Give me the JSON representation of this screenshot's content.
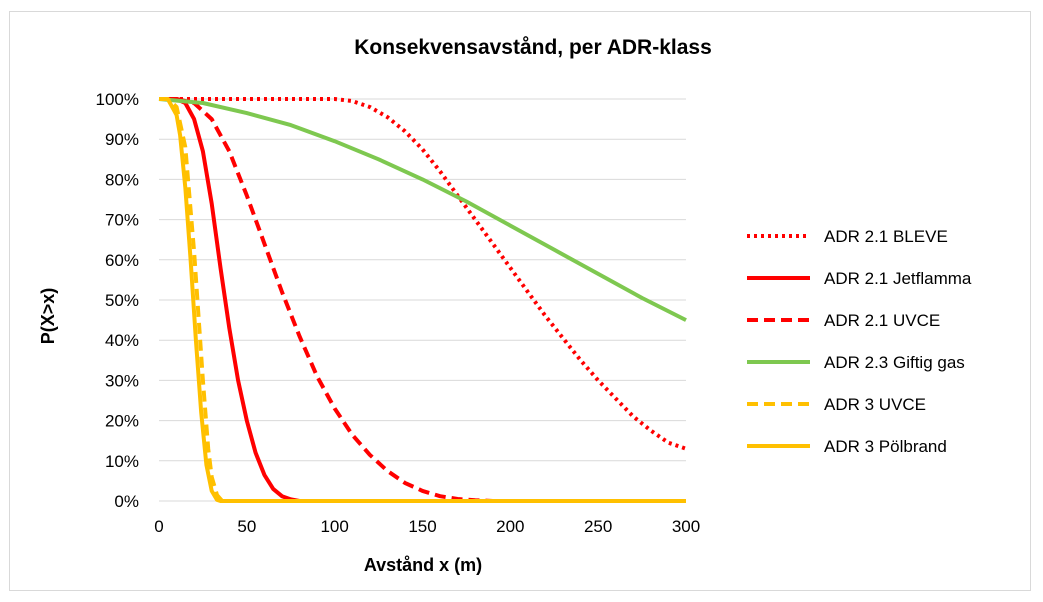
{
  "chart_data": {
    "type": "line",
    "title": "Konsekvensavstånd, per ADR-klass",
    "xlabel": "Avstånd x (m)",
    "ylabel": "P(X>x)",
    "xlim": [
      0,
      300
    ],
    "ylim": [
      0,
      1
    ],
    "x_ticks": [
      "0",
      "50",
      "100",
      "150",
      "200",
      "250",
      "300"
    ],
    "y_ticks": [
      "0%",
      "10%",
      "20%",
      "30%",
      "40%",
      "50%",
      "60%",
      "70%",
      "80%",
      "90%",
      "100%"
    ],
    "grid": "horizontal",
    "legend_position": "right",
    "series": [
      {
        "name": "ADR 2.1 BLEVE",
        "color": "#ff0000",
        "style": "dotted",
        "x": [
          0,
          50,
          100,
          110,
          120,
          130,
          140,
          150,
          160,
          170,
          180,
          190,
          200,
          210,
          220,
          230,
          240,
          250,
          260,
          270,
          280,
          290,
          300
        ],
        "y": [
          1.0,
          1.0,
          1.0,
          0.995,
          0.98,
          0.955,
          0.92,
          0.875,
          0.82,
          0.76,
          0.7,
          0.64,
          0.58,
          0.52,
          0.46,
          0.405,
          0.35,
          0.3,
          0.255,
          0.21,
          0.175,
          0.145,
          0.13
        ]
      },
      {
        "name": "ADR 2.1 Jetflamma",
        "color": "#ff0000",
        "style": "solid",
        "x": [
          0,
          10,
          15,
          20,
          25,
          30,
          35,
          40,
          45,
          50,
          55,
          60,
          65,
          70,
          75,
          80,
          90,
          300
        ],
        "y": [
          1.0,
          1.0,
          0.99,
          0.95,
          0.87,
          0.74,
          0.58,
          0.43,
          0.3,
          0.2,
          0.12,
          0.065,
          0.03,
          0.012,
          0.004,
          0.0,
          0.0,
          0.0
        ]
      },
      {
        "name": "ADR 2.1 UVCE",
        "color": "#ff0000",
        "style": "dashed",
        "x": [
          0,
          10,
          20,
          30,
          40,
          50,
          60,
          70,
          80,
          90,
          100,
          110,
          120,
          130,
          140,
          150,
          160,
          170,
          180,
          190,
          300
        ],
        "y": [
          1.0,
          1.0,
          0.99,
          0.95,
          0.87,
          0.76,
          0.64,
          0.52,
          0.41,
          0.31,
          0.23,
          0.165,
          0.115,
          0.075,
          0.045,
          0.025,
          0.012,
          0.005,
          0.002,
          0.0,
          0.0
        ]
      },
      {
        "name": "ADR 2.3 Giftig gas",
        "color": "#7ec850",
        "style": "solid",
        "x": [
          0,
          25,
          50,
          75,
          100,
          125,
          150,
          175,
          200,
          225,
          250,
          275,
          300
        ],
        "y": [
          1.0,
          0.99,
          0.965,
          0.935,
          0.895,
          0.85,
          0.8,
          0.745,
          0.685,
          0.625,
          0.565,
          0.505,
          0.45
        ]
      },
      {
        "name": "ADR 3 UVCE",
        "color": "#ffc000",
        "style": "dashed",
        "x": [
          0,
          5,
          10,
          15,
          20,
          25,
          28,
          30,
          33,
          36,
          300
        ],
        "y": [
          1.0,
          1.0,
          0.98,
          0.88,
          0.62,
          0.3,
          0.13,
          0.06,
          0.015,
          0.0,
          0.0
        ]
      },
      {
        "name": "ADR 3 Pölbrand",
        "color": "#ffc000",
        "style": "solid",
        "x": [
          0,
          5,
          10,
          12,
          15,
          18,
          21,
          24,
          27,
          30,
          33,
          35,
          300
        ],
        "y": [
          1.0,
          1.0,
          0.96,
          0.91,
          0.78,
          0.6,
          0.4,
          0.22,
          0.09,
          0.025,
          0.003,
          0.0,
          0.0
        ]
      }
    ]
  }
}
